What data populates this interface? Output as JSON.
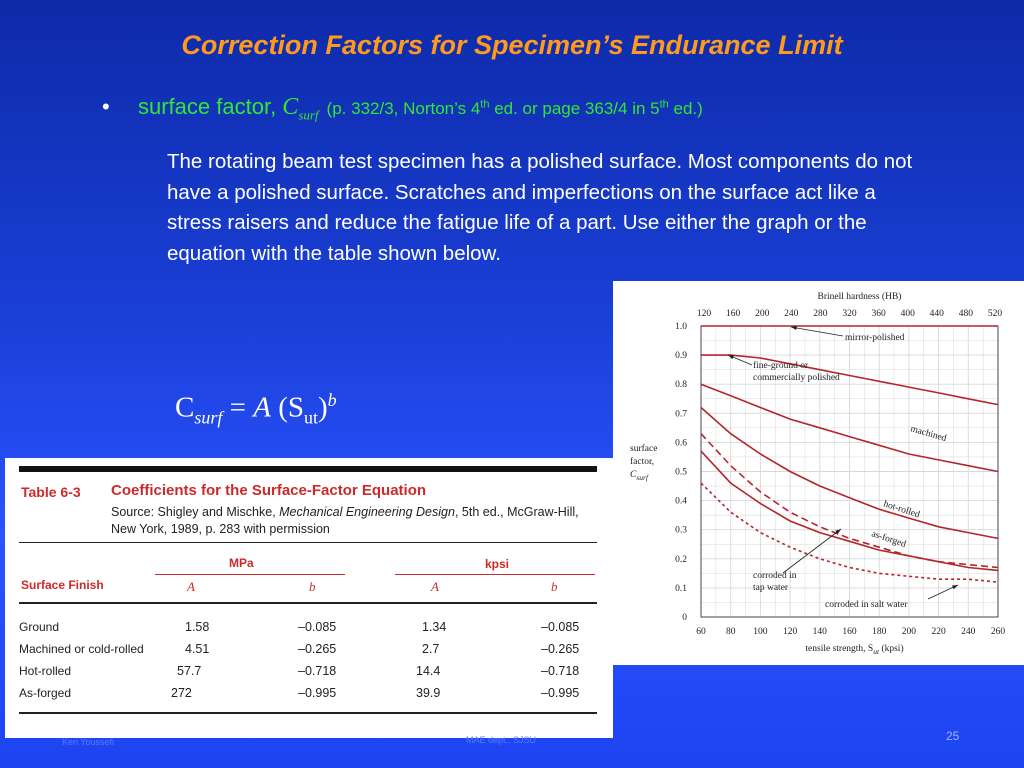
{
  "slide": {
    "title": "Correction Factors for Specimen’s Endurance Limit",
    "bullet": {
      "marker": "•",
      "label": "surface factor, ",
      "symbol": "C",
      "symbol_sub": "surf",
      "ref_a": "(p. 332/3, Norton’s 4",
      "ref_sup1": "th",
      "ref_b": " ed. or page 363/4 in 5",
      "ref_sup2": "th",
      "ref_c": " ed.)"
    },
    "paragraph": "The rotating beam test specimen has a polished surface. Most components do not have a polished surface. Scratches and imperfections on the surface act like a stress raisers and reduce the fatigue life of a part. Use either the graph or the equation with the table shown below.",
    "equation": {
      "c": "C",
      "c_sub": "surf",
      "eq": " = ",
      "a": "A",
      "open": " (S",
      "s_sub": "ut",
      "close": ")",
      "exp": "b"
    },
    "footer_left": "Ken Youssefi",
    "footer_mid": "MAE dept., SJSU",
    "page_number": "25"
  },
  "table": {
    "number": "Table 6-3",
    "caption": "Coefficients for the Surface-Factor Equation",
    "source_a": "Source: Shigley and Mischke, ",
    "source_book": "Mechanical Engineering Design",
    "source_b": ", 5th ed., McGraw-Hill, New York, 1989, p. 283 with permission",
    "group_mpa": "MPa",
    "group_kpsi": "kpsi",
    "col_finish": "Surface Finish",
    "col_a": "A",
    "col_b": "b",
    "rows": [
      {
        "finish": "Ground",
        "a_mpa": "1.58",
        "b_mpa": "–0.085",
        "a_kpsi": "1.34",
        "b_kpsi": "–0.085"
      },
      {
        "finish": "Machined or cold-rolled",
        "a_mpa": "4.51",
        "b_mpa": "–0.265",
        "a_kpsi": "2.7",
        "b_kpsi": "–0.265"
      },
      {
        "finish": "Hot-rolled",
        "a_mpa": "57.7",
        "b_mpa": "–0.718",
        "a_kpsi": "14.4",
        "b_kpsi": "–0.718"
      },
      {
        "finish": "As-forged",
        "a_mpa": "272",
        "b_mpa": "–0.995",
        "a_kpsi": "39.9",
        "b_kpsi": "–0.995"
      }
    ]
  },
  "chart_data": {
    "type": "line",
    "title": "",
    "xlabel": "tensile strength, S",
    "xlabel_sub": "ut",
    "xlabel_unit": " (kpsi)",
    "top_axis_label": "Brinell hardness (HB)",
    "ylabel_lines": [
      "surface",
      "factor,"
    ],
    "ylabel_symbol": "C",
    "ylabel_symbol_sub": "surf",
    "xlim": [
      60,
      260
    ],
    "ylim": [
      0,
      1.0
    ],
    "x_ticks": [
      "60",
      "80",
      "100",
      "120",
      "140",
      "160",
      "180",
      "200",
      "220",
      "240",
      "260"
    ],
    "y_ticks": [
      "0",
      "0.1",
      "0.2",
      "0.3",
      "0.4",
      "0.5",
      "0.6",
      "0.7",
      "0.8",
      "0.9",
      "1.0"
    ],
    "top_ticks": [
      "120",
      "160",
      "200",
      "240",
      "280",
      "320",
      "360",
      "400",
      "440",
      "480",
      "520"
    ],
    "grid": true,
    "series": [
      {
        "name": "mirror-polished",
        "style": "solid",
        "x": [
          60,
          260
        ],
        "y": [
          1.0,
          1.0
        ]
      },
      {
        "name": "fine-ground or commercially polished",
        "style": "solid",
        "x": [
          60,
          80,
          100,
          120,
          140,
          160,
          180,
          200,
          220,
          240,
          260
        ],
        "y": [
          0.9,
          0.9,
          0.89,
          0.87,
          0.85,
          0.83,
          0.81,
          0.79,
          0.77,
          0.75,
          0.73
        ]
      },
      {
        "name": "machined",
        "style": "solid",
        "x": [
          60,
          80,
          100,
          120,
          140,
          160,
          180,
          200,
          220,
          240,
          260
        ],
        "y": [
          0.8,
          0.76,
          0.72,
          0.68,
          0.65,
          0.62,
          0.59,
          0.56,
          0.54,
          0.52,
          0.5
        ]
      },
      {
        "name": "hot-rolled",
        "style": "solid",
        "x": [
          60,
          80,
          100,
          120,
          140,
          160,
          180,
          200,
          220,
          240,
          260
        ],
        "y": [
          0.72,
          0.63,
          0.56,
          0.5,
          0.45,
          0.41,
          0.37,
          0.34,
          0.31,
          0.29,
          0.27
        ]
      },
      {
        "name": "as-forged",
        "style": "solid",
        "x": [
          60,
          80,
          100,
          120,
          140,
          160,
          180,
          200,
          220,
          240,
          260
        ],
        "y": [
          0.57,
          0.46,
          0.39,
          0.33,
          0.29,
          0.26,
          0.23,
          0.21,
          0.19,
          0.17,
          0.16
        ]
      },
      {
        "name": "corroded in tap water",
        "style": "dashed",
        "x": [
          60,
          80,
          100,
          120,
          140,
          160,
          180,
          200,
          220,
          240,
          260
        ],
        "y": [
          0.63,
          0.52,
          0.43,
          0.36,
          0.31,
          0.27,
          0.24,
          0.21,
          0.19,
          0.18,
          0.17
        ]
      },
      {
        "name": "corroded in salt water",
        "style": "dotted",
        "x": [
          60,
          80,
          100,
          120,
          140,
          160,
          180,
          200,
          220,
          240,
          260
        ],
        "y": [
          0.46,
          0.36,
          0.29,
          0.24,
          0.2,
          0.17,
          0.15,
          0.14,
          0.13,
          0.13,
          0.12
        ]
      }
    ],
    "colors": {
      "curve": "#b3262b",
      "grid": "#d8d8d8",
      "axis": "#222222"
    }
  }
}
